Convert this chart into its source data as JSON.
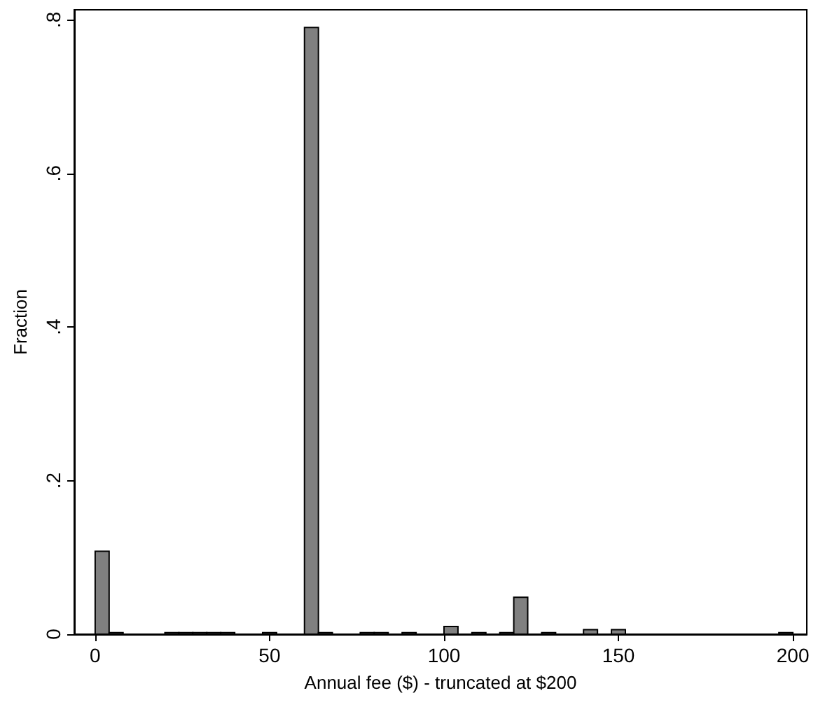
{
  "chart_data": {
    "type": "histogram",
    "xlabel": "Annual fee ($) - truncated at $200",
    "ylabel": "Fraction",
    "bins": [
      0,
      4,
      8,
      12,
      16,
      20,
      24,
      28,
      32,
      36,
      40,
      44,
      48,
      52,
      56,
      60,
      64,
      68,
      72,
      76,
      80,
      84,
      88,
      92,
      96,
      100,
      104,
      108,
      112,
      116,
      120,
      124,
      128,
      132,
      136,
      140,
      144,
      148,
      152,
      156,
      160,
      164,
      168,
      172,
      176,
      180,
      184,
      188,
      192,
      196,
      200
    ],
    "values": [
      0.108,
      0.002,
      0,
      0,
      0,
      0.002,
      0.002,
      0.002,
      0.002,
      0.002,
      0,
      0,
      0.002,
      0,
      0,
      0.79,
      0.002,
      0,
      0,
      0.002,
      0.002,
      0,
      0.002,
      0,
      0,
      0.01,
      0,
      0.002,
      0,
      0.002,
      0.048,
      0,
      0.002,
      0,
      0,
      0.006,
      0,
      0.006,
      0,
      0,
      0,
      0,
      0,
      0,
      0,
      0,
      0,
      0,
      0,
      0.002
    ],
    "color": "#808080",
    "xlim": [
      -6,
      204
    ],
    "xticks": [
      0,
      50,
      100,
      150,
      200
    ],
    "ylim": [
      0,
      0.813
    ],
    "yticks": [
      {
        "value": 0,
        "label": "0"
      },
      {
        "value": 0.2,
        "label": ".2"
      },
      {
        "value": 0.4,
        "label": ".4"
      },
      {
        "value": 0.6,
        "label": ".6"
      },
      {
        "value": 0.8,
        "label": ".8"
      }
    ],
    "grid": false
  }
}
